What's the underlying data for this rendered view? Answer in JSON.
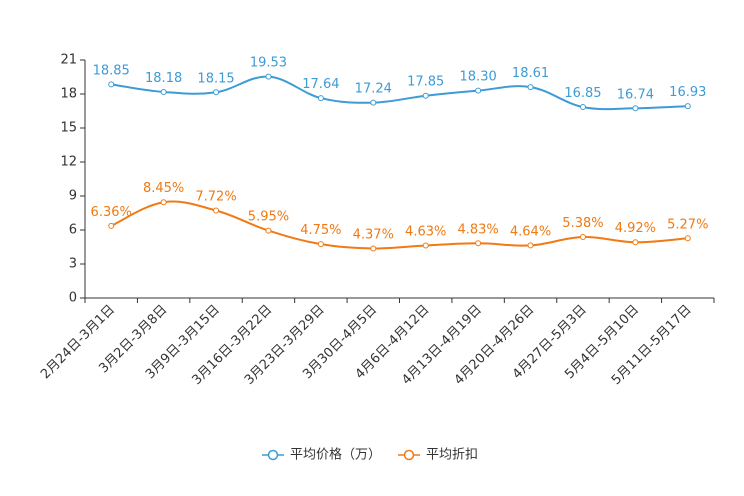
{
  "chart_data": {
    "type": "line",
    "title": "",
    "xlabel": "",
    "ylabel": "",
    "ylim": [
      0,
      21
    ],
    "yticks": [
      0,
      3,
      6,
      9,
      12,
      15,
      18,
      21
    ],
    "grid": false,
    "legend_position": "bottom-center",
    "categories": [
      "2月24日-3月1日",
      "3月2日-3月8日",
      "3月9日-3月15日",
      "3月16日-3月22日",
      "3月23日-3月29日",
      "3月30日-4月5日",
      "4月6日-4月12日",
      "4月13日-4月19日",
      "4月20日-4月26日",
      "4月27日-5月3日",
      "5月4日-5月10日",
      "5月11日-5月17日"
    ],
    "series": [
      {
        "name": "平均价格（万）",
        "color": "#3d9bd6",
        "values": [
          18.85,
          18.18,
          18.15,
          19.53,
          17.64,
          17.24,
          17.85,
          18.3,
          18.61,
          16.85,
          16.74,
          16.93
        ],
        "labels": [
          "18.85",
          "18.18",
          "18.15",
          "19.53",
          "17.64",
          "17.24",
          "17.85",
          "18.30",
          "18.61",
          "16.85",
          "16.74",
          "16.93"
        ]
      },
      {
        "name": "平均折扣",
        "color": "#f07a14",
        "values": [
          6.36,
          8.45,
          7.72,
          5.95,
          4.75,
          4.37,
          4.63,
          4.83,
          4.64,
          5.38,
          4.92,
          5.27
        ],
        "labels": [
          "6.36%",
          "8.45%",
          "7.72%",
          "5.95%",
          "4.75%",
          "4.37%",
          "4.63%",
          "4.83%",
          "4.64%",
          "5.38%",
          "4.92%",
          "5.27%"
        ]
      }
    ]
  }
}
